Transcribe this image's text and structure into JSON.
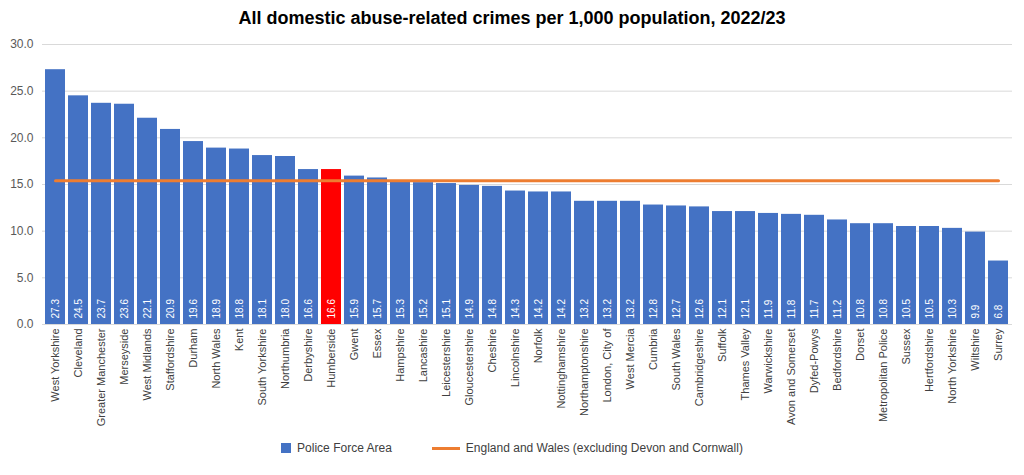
{
  "chart_data": {
    "type": "bar",
    "title": "All domestic abuse-related crimes per 1,000 population, 2022/23",
    "categories": [
      "West Yorkshire",
      "Cleveland",
      "Greater Manchester",
      "Merseyside",
      "West Midlands",
      "Staffordshire",
      "Durham",
      "North Wales",
      "Kent",
      "South Yorkshire",
      "Northumbria",
      "Derbyshire",
      "Humberside",
      "Gwent",
      "Essex",
      "Hampshire",
      "Lancashire",
      "Leicestershire",
      "Gloucestershire",
      "Cheshire",
      "Lincolnshire",
      "Norfolk",
      "Nottinghamshire",
      "Northamptonshire",
      "London, City of",
      "West Mercia",
      "Cumbria",
      "South Wales",
      "Cambridgeshire",
      "Suffolk",
      "Thames Valley",
      "Warwickshire",
      "Avon and Somerset",
      "Dyfed-Powys",
      "Bedfordshire",
      "Dorset",
      "Metropolitan Police",
      "Sussex",
      "Hertfordshire",
      "North Yorkshire",
      "Wiltshire",
      "Surrey"
    ],
    "series": [
      {
        "name": "Police Force Area",
        "type": "bar",
        "color": "#4472c4",
        "colors": [
          "#4472c4",
          "#4472c4",
          "#4472c4",
          "#4472c4",
          "#4472c4",
          "#4472c4",
          "#4472c4",
          "#4472c4",
          "#4472c4",
          "#4472c4",
          "#4472c4",
          "#4472c4",
          "#ff0000",
          "#4472c4",
          "#4472c4",
          "#4472c4",
          "#4472c4",
          "#4472c4",
          "#4472c4",
          "#4472c4",
          "#4472c4",
          "#4472c4",
          "#4472c4",
          "#4472c4",
          "#4472c4",
          "#4472c4",
          "#4472c4",
          "#4472c4",
          "#4472c4",
          "#4472c4",
          "#4472c4",
          "#4472c4",
          "#4472c4",
          "#4472c4",
          "#4472c4",
          "#4472c4",
          "#4472c4",
          "#4472c4",
          "#4472c4",
          "#4472c4",
          "#4472c4",
          "#4472c4"
        ],
        "values": [
          27.3,
          24.5,
          23.7,
          23.6,
          22.1,
          20.9,
          19.6,
          18.9,
          18.8,
          18.1,
          18.0,
          16.6,
          16.6,
          15.9,
          15.7,
          15.3,
          15.2,
          15.1,
          14.9,
          14.8,
          14.3,
          14.2,
          14.2,
          13.2,
          13.2,
          13.2,
          12.8,
          12.7,
          12.6,
          12.1,
          12.1,
          11.9,
          11.8,
          11.7,
          11.2,
          10.8,
          10.8,
          10.5,
          10.5,
          10.3,
          9.9,
          6.8
        ],
        "value_labels": [
          "27.3",
          "24.5",
          "23.7",
          "23.6",
          "22.1",
          "20.9",
          "19.6",
          "18.9",
          "18.8",
          "18.1",
          "18.0",
          "16.6",
          "16.6",
          "15.9",
          "15.7",
          "15.3",
          "15.2",
          "15.1",
          "14.9",
          "14.8",
          "14.3",
          "14.2",
          "14.2",
          "13.2",
          "13.2",
          "13.2",
          "12.8",
          "12.7",
          "12.6",
          "12.1",
          "12.1",
          "11.9",
          "11.8",
          "11.7",
          "11.2",
          "10.8",
          "10.8",
          "10.5",
          "10.5",
          "10.3",
          "9.9",
          "6.8"
        ]
      },
      {
        "name": "England and Wales (excluding Devon and Cornwall)",
        "type": "line",
        "color": "#ed7d31",
        "values": [
          15.4,
          15.4,
          15.4,
          15.4,
          15.4,
          15.4,
          15.4,
          15.4,
          15.4,
          15.4,
          15.4,
          15.4,
          15.4,
          15.4,
          15.4,
          15.4,
          15.4,
          15.4,
          15.4,
          15.4,
          15.4,
          15.4,
          15.4,
          15.4,
          15.4,
          15.4,
          15.4,
          15.4,
          15.4,
          15.4,
          15.4,
          15.4,
          15.4,
          15.4,
          15.4,
          15.4,
          15.4,
          15.4,
          15.4,
          15.4,
          15.4,
          15.4
        ]
      }
    ],
    "ylim": [
      0,
      30
    ],
    "yticks": [
      {
        "value": 0,
        "label": "0.0"
      },
      {
        "value": 5,
        "label": "5.0"
      },
      {
        "value": 10,
        "label": "10.0"
      },
      {
        "value": 15,
        "label": "15.0"
      },
      {
        "value": 20,
        "label": "20.0"
      },
      {
        "value": 25,
        "label": "25.0"
      },
      {
        "value": 30,
        "label": "30.0"
      }
    ],
    "grid": true,
    "data_labels": true,
    "legend": "bottom"
  }
}
